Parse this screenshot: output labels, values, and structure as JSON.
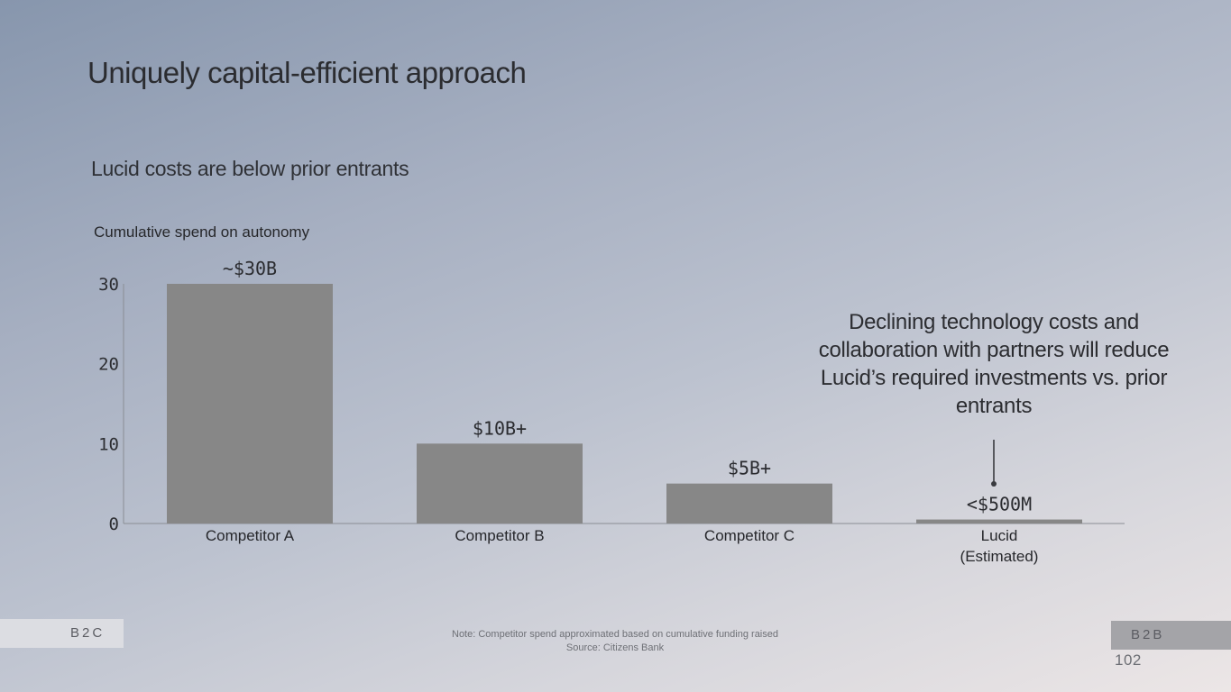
{
  "slide": {
    "title": "Uniquely capital-efficient approach",
    "subtitle": "Lucid costs are below prior entrants",
    "callout": "Declining technology costs and collaboration with partners will reduce Lucid’s required investments vs. prior entrants",
    "note": "Note: Competitor spend approximated based on cumulative funding raised",
    "source": "Source: Citizens Bank",
    "page_number": "102",
    "nav_left": "B2C",
    "nav_right": "B2B"
  },
  "chart_data": {
    "type": "bar",
    "title": "Cumulative spend on autonomy",
    "categories": [
      [
        "Competitor A"
      ],
      [
        "Competitor B"
      ],
      [
        "Competitor C"
      ],
      [
        "Lucid",
        "(Estimated)"
      ]
    ],
    "values": [
      30,
      10,
      5,
      0.5
    ],
    "data_labels": [
      "~$30B",
      "$10B+",
      "$5B+",
      "<$500M"
    ],
    "yticks": [
      "0",
      "10",
      "20",
      "30"
    ],
    "ylim": [
      0,
      30
    ],
    "bar_color": "#878787",
    "axis_color": "#8a8d94"
  }
}
